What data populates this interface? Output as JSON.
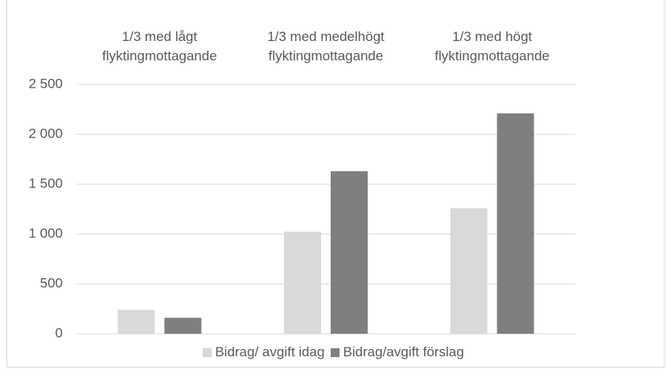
{
  "chart_data": {
    "type": "bar",
    "categories": [
      "1/3 med lågt flyktingmottagande",
      "1/3 med medelhögt flyktingmottagande",
      "1/3 med högt flyktingmottagande"
    ],
    "series": [
      {
        "name": "Bidrag/ avgift idag",
        "color": "#d9d9d9",
        "values": [
          240,
          1025,
          1260
        ]
      },
      {
        "name": "Bidrag/avgift förslag",
        "color": "#7f7f7f",
        "values": [
          160,
          1630,
          2210
        ]
      }
    ],
    "ylim": [
      0,
      2500
    ],
    "yticks": [
      0,
      500,
      {
        "value": 1000,
        "label": "1 000"
      },
      {
        "value": 1500,
        "label": "1 500"
      },
      {
        "value": 2000,
        "label": "2 000"
      },
      {
        "value": 2500,
        "label": "2 500"
      }
    ],
    "grid": true,
    "legend": "bottom"
  }
}
